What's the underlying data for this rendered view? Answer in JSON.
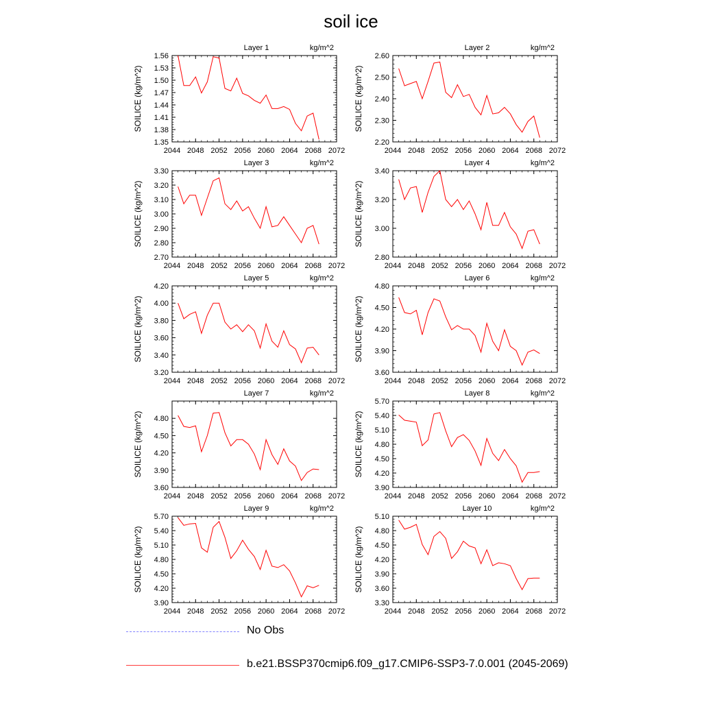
{
  "figure": {
    "title": "soil ice",
    "legend": [
      {
        "label": "No Obs",
        "style": "dashed",
        "color": "#8080ff"
      },
      {
        "label": "b.e21.BSSP370cmip6.f09_g17.CMIP6-SSP3-7.0.001 (2045-2069)",
        "style": "solid",
        "color": "#ff0000"
      }
    ],
    "line_color": "#ff0000"
  },
  "chart_data": [
    {
      "type": "line",
      "title": "Layer 1",
      "units": "kg/m^2",
      "ylabel": "SOILICE  (kg/m^2)",
      "xlim": [
        2044,
        2072
      ],
      "xticks": [
        "2044",
        "2048",
        "2052",
        "2056",
        "2060",
        "2064",
        "2068",
        "2072"
      ],
      "ylim": [
        1.35,
        1.56
      ],
      "yticks": [
        "1.35",
        "1.38",
        "1.41",
        "1.44",
        "1.47",
        "1.50",
        "1.53",
        "1.56"
      ],
      "x": [
        2045,
        2046,
        2047,
        2048,
        2049,
        2050,
        2051,
        2052,
        2053,
        2054,
        2055,
        2056,
        2057,
        2058,
        2059,
        2060,
        2061,
        2062,
        2063,
        2064,
        2065,
        2066,
        2067,
        2068,
        2069
      ],
      "values": [
        1.56,
        1.487,
        1.487,
        1.508,
        1.469,
        1.496,
        1.557,
        1.554,
        1.48,
        1.474,
        1.505,
        1.468,
        1.462,
        1.451,
        1.444,
        1.464,
        1.431,
        1.431,
        1.436,
        1.429,
        1.395,
        1.377,
        1.413,
        1.42,
        1.356
      ]
    },
    {
      "type": "line",
      "title": "Layer 2",
      "units": "kg/m^2",
      "ylabel": "SOILICE  (kg/m^2)",
      "xlim": [
        2044,
        2072
      ],
      "xticks": [
        "2044",
        "2048",
        "2052",
        "2056",
        "2060",
        "2064",
        "2068",
        "2072"
      ],
      "ylim": [
        2.2,
        2.6
      ],
      "yticks": [
        "2.20",
        "2.30",
        "2.40",
        "2.50",
        "2.60"
      ],
      "x": [
        2045,
        2046,
        2047,
        2048,
        2049,
        2050,
        2051,
        2052,
        2053,
        2054,
        2055,
        2056,
        2057,
        2058,
        2059,
        2060,
        2061,
        2062,
        2063,
        2064,
        2065,
        2066,
        2067,
        2068,
        2069
      ],
      "values": [
        2.54,
        2.46,
        2.47,
        2.48,
        2.4,
        2.48,
        2.565,
        2.57,
        2.43,
        2.405,
        2.465,
        2.41,
        2.42,
        2.36,
        2.325,
        2.415,
        2.33,
        2.335,
        2.36,
        2.33,
        2.28,
        2.245,
        2.295,
        2.32,
        2.22
      ]
    },
    {
      "type": "line",
      "title": "Layer 3",
      "units": "kg/m^2",
      "ylabel": "SOILICE  (kg/m^2)",
      "xlim": [
        2044,
        2072
      ],
      "xticks": [
        "2044",
        "2048",
        "2052",
        "2056",
        "2060",
        "2064",
        "2068",
        "2072"
      ],
      "ylim": [
        2.7,
        3.3
      ],
      "yticks": [
        "2.70",
        "2.80",
        "2.90",
        "3.00",
        "3.10",
        "3.20",
        "3.30"
      ],
      "x": [
        2045,
        2046,
        2047,
        2048,
        2049,
        2050,
        2051,
        2052,
        2053,
        2054,
        2055,
        2056,
        2057,
        2058,
        2059,
        2060,
        2061,
        2062,
        2063,
        2064,
        2065,
        2066,
        2067,
        2068,
        2069
      ],
      "values": [
        3.19,
        3.07,
        3.13,
        3.13,
        2.99,
        3.11,
        3.23,
        3.25,
        3.07,
        3.03,
        3.09,
        3.02,
        3.05,
        2.97,
        2.9,
        3.05,
        2.91,
        2.92,
        2.98,
        2.92,
        2.86,
        2.8,
        2.9,
        2.92,
        2.79
      ]
    },
    {
      "type": "line",
      "title": "Layer 4",
      "units": "kg/m^2",
      "ylabel": "SOILICE  (kg/m^2)",
      "xlim": [
        2044,
        2072
      ],
      "xticks": [
        "2044",
        "2048",
        "2052",
        "2056",
        "2060",
        "2064",
        "2068",
        "2072"
      ],
      "ylim": [
        2.8,
        3.4
      ],
      "yticks": [
        "2.80",
        "3.00",
        "3.20",
        "3.40"
      ],
      "x": [
        2045,
        2046,
        2047,
        2048,
        2049,
        2050,
        2051,
        2052,
        2053,
        2054,
        2055,
        2056,
        2057,
        2058,
        2059,
        2060,
        2061,
        2062,
        2063,
        2064,
        2065,
        2066,
        2067,
        2068,
        2069
      ],
      "values": [
        3.34,
        3.2,
        3.28,
        3.29,
        3.11,
        3.25,
        3.36,
        3.4,
        3.2,
        3.15,
        3.2,
        3.13,
        3.19,
        3.1,
        2.99,
        3.18,
        3.02,
        3.02,
        3.11,
        3.01,
        2.96,
        2.86,
        2.98,
        2.99,
        2.89
      ]
    },
    {
      "type": "line",
      "title": "Layer 5",
      "units": "kg/m^2",
      "ylabel": "SOILICE  (kg/m^2)",
      "xlim": [
        2044,
        2072
      ],
      "xticks": [
        "2044",
        "2048",
        "2052",
        "2056",
        "2060",
        "2064",
        "2068",
        "2072"
      ],
      "ylim": [
        3.2,
        4.2
      ],
      "yticks": [
        "3.20",
        "3.40",
        "3.60",
        "3.80",
        "4.00",
        "4.20"
      ],
      "x": [
        2045,
        2046,
        2047,
        2048,
        2049,
        2050,
        2051,
        2052,
        2053,
        2054,
        2055,
        2056,
        2057,
        2058,
        2059,
        2060,
        2061,
        2062,
        2063,
        2064,
        2065,
        2066,
        2067,
        2068,
        2069
      ],
      "values": [
        4.0,
        3.82,
        3.87,
        3.9,
        3.65,
        3.86,
        4.0,
        4.0,
        3.78,
        3.7,
        3.75,
        3.67,
        3.75,
        3.68,
        3.48,
        3.76,
        3.56,
        3.49,
        3.68,
        3.52,
        3.47,
        3.31,
        3.48,
        3.49,
        3.4
      ]
    },
    {
      "type": "line",
      "title": "Layer 6",
      "units": "kg/m^2",
      "ylabel": "SOILICE  (kg/m^2)",
      "xlim": [
        2044,
        2072
      ],
      "xticks": [
        "2044",
        "2048",
        "2052",
        "2056",
        "2060",
        "2064",
        "2068",
        "2072"
      ],
      "ylim": [
        3.6,
        4.8
      ],
      "yticks": [
        "3.60",
        "3.90",
        "4.20",
        "4.50",
        "4.80"
      ],
      "x": [
        2045,
        2046,
        2047,
        2048,
        2049,
        2050,
        2051,
        2052,
        2053,
        2054,
        2055,
        2056,
        2057,
        2058,
        2059,
        2060,
        2061,
        2062,
        2063,
        2064,
        2065,
        2066,
        2067,
        2068,
        2069
      ],
      "values": [
        4.64,
        4.43,
        4.41,
        4.46,
        4.12,
        4.43,
        4.62,
        4.59,
        4.37,
        4.19,
        4.25,
        4.2,
        4.2,
        4.11,
        3.88,
        4.28,
        4.03,
        3.9,
        4.19,
        3.96,
        3.9,
        3.7,
        3.88,
        3.91,
        3.86
      ]
    },
    {
      "type": "line",
      "title": "Layer 7",
      "units": "kg/m^2",
      "ylabel": "SOILICE  (kg/m^2)",
      "xlim": [
        2044,
        2072
      ],
      "xticks": [
        "2044",
        "2048",
        "2052",
        "2056",
        "2060",
        "2064",
        "2068",
        "2072"
      ],
      "ylim": [
        3.6,
        5.1
      ],
      "yticks": [
        "3.60",
        "3.90",
        "4.20",
        "4.50",
        "4.80"
      ],
      "x": [
        2045,
        2046,
        2047,
        2048,
        2049,
        2050,
        2051,
        2052,
        2053,
        2054,
        2055,
        2056,
        2057,
        2058,
        2059,
        2060,
        2061,
        2062,
        2063,
        2064,
        2065,
        2066,
        2067,
        2068,
        2069
      ],
      "values": [
        4.85,
        4.66,
        4.64,
        4.67,
        4.22,
        4.5,
        4.89,
        4.9,
        4.55,
        4.32,
        4.43,
        4.43,
        4.35,
        4.18,
        3.91,
        4.43,
        4.17,
        4.0,
        4.27,
        4.06,
        3.97,
        3.72,
        3.86,
        3.92,
        3.91
      ]
    },
    {
      "type": "line",
      "title": "Layer 8",
      "units": "kg/m^2",
      "ylabel": "SOILICE  (kg/m^2)",
      "xlim": [
        2044,
        2072
      ],
      "xticks": [
        "2044",
        "2048",
        "2052",
        "2056",
        "2060",
        "2064",
        "2068",
        "2072"
      ],
      "ylim": [
        3.9,
        5.7
      ],
      "yticks": [
        "3.90",
        "4.20",
        "4.50",
        "4.80",
        "5.10",
        "5.40",
        "5.70"
      ],
      "x": [
        2045,
        2046,
        2047,
        2048,
        2049,
        2050,
        2051,
        2052,
        2053,
        2054,
        2055,
        2056,
        2057,
        2058,
        2059,
        2060,
        2061,
        2062,
        2063,
        2064,
        2065,
        2066,
        2067,
        2068,
        2069
      ],
      "values": [
        5.41,
        5.3,
        5.28,
        5.26,
        4.77,
        4.89,
        5.43,
        5.46,
        5.08,
        4.75,
        4.94,
        5.0,
        4.88,
        4.66,
        4.36,
        4.92,
        4.61,
        4.46,
        4.69,
        4.5,
        4.35,
        4.01,
        4.21,
        4.21,
        4.23
      ]
    },
    {
      "type": "line",
      "title": "Layer 9",
      "units": "kg/m^2",
      "ylabel": "SOILICE  (kg/m^2)",
      "xlim": [
        2044,
        2072
      ],
      "xticks": [
        "2044",
        "2048",
        "2052",
        "2056",
        "2060",
        "2064",
        "2068",
        "2072"
      ],
      "ylim": [
        3.9,
        5.7
      ],
      "yticks": [
        "3.90",
        "4.20",
        "4.50",
        "4.80",
        "5.10",
        "5.40",
        "5.70"
      ],
      "x": [
        2045,
        2046,
        2047,
        2048,
        2049,
        2050,
        2051,
        2052,
        2053,
        2054,
        2055,
        2056,
        2057,
        2058,
        2059,
        2060,
        2061,
        2062,
        2063,
        2064,
        2065,
        2066,
        2067,
        2068,
        2069
      ],
      "values": [
        5.67,
        5.51,
        5.54,
        5.55,
        5.04,
        4.95,
        5.47,
        5.59,
        5.26,
        4.82,
        4.98,
        5.2,
        5.01,
        4.86,
        4.59,
        4.99,
        4.66,
        4.63,
        4.69,
        4.56,
        4.31,
        4.02,
        4.25,
        4.21,
        4.26
      ]
    },
    {
      "type": "line",
      "title": "Layer 10",
      "units": "kg/m^2",
      "ylabel": "SOILICE  (kg/m^2)",
      "xlim": [
        2044,
        2072
      ],
      "xticks": [
        "2044",
        "2048",
        "2052",
        "2056",
        "2060",
        "2064",
        "2068",
        "2072"
      ],
      "ylim": [
        3.3,
        5.1
      ],
      "yticks": [
        "3.30",
        "3.60",
        "3.90",
        "4.20",
        "4.50",
        "4.80",
        "5.10"
      ],
      "x": [
        2045,
        2046,
        2047,
        2048,
        2049,
        2050,
        2051,
        2052,
        2053,
        2054,
        2055,
        2056,
        2057,
        2058,
        2059,
        2060,
        2061,
        2062,
        2063,
        2064,
        2065,
        2066,
        2067,
        2068,
        2069
      ],
      "values": [
        5.02,
        4.83,
        4.87,
        4.93,
        4.51,
        4.3,
        4.68,
        4.78,
        4.64,
        4.22,
        4.36,
        4.58,
        4.48,
        4.44,
        4.11,
        4.4,
        4.07,
        4.13,
        4.11,
        4.07,
        3.8,
        3.57,
        3.8,
        3.81,
        3.81
      ]
    }
  ]
}
